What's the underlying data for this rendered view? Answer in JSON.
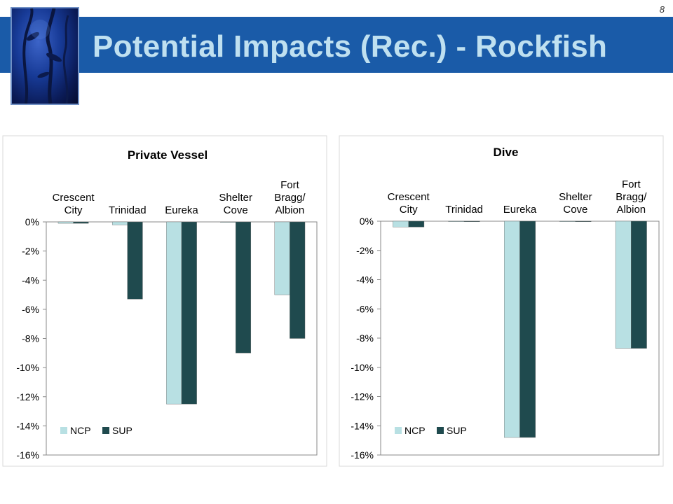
{
  "slide": {
    "title": "Potential Impacts (Rec.) - Rockfish",
    "page_number": "8"
  },
  "colors": {
    "title_band": "#1a5ba8",
    "title_text": "#bfe0f0",
    "ncp": "#b8e0e3",
    "sup": "#1f4a4e"
  },
  "chart_data": [
    {
      "type": "bar",
      "title": "Private Vessel",
      "categories": [
        [
          "Crescent",
          "City"
        ],
        [
          "Trinidad"
        ],
        [
          "Eureka"
        ],
        [
          "Shelter",
          "Cove"
        ],
        [
          "Fort",
          "Bragg/",
          "Albion"
        ]
      ],
      "series": [
        {
          "name": "NCP",
          "values": [
            -0.1,
            -0.2,
            -12.5,
            0,
            -5.0
          ]
        },
        {
          "name": "SUP",
          "values": [
            -0.1,
            -5.3,
            -12.5,
            -9.0,
            -8.0
          ]
        }
      ],
      "ylim": [
        -16,
        0
      ],
      "yticks": [
        "0%",
        "-2%",
        "-4%",
        "-6%",
        "-8%",
        "-10%",
        "-12%",
        "-14%",
        "-16%"
      ],
      "category_axis_position": "top",
      "legend": "bottom-left",
      "grid": false
    },
    {
      "type": "bar",
      "title": "Dive",
      "categories": [
        [
          "Crescent",
          "City"
        ],
        [
          "Trinidad"
        ],
        [
          "Eureka"
        ],
        [
          "Shelter",
          "Cove"
        ],
        [
          "Fort",
          "Bragg/",
          "Albion"
        ]
      ],
      "series": [
        {
          "name": "NCP",
          "values": [
            -0.4,
            0,
            -14.8,
            0,
            -8.7
          ]
        },
        {
          "name": "SUP",
          "values": [
            -0.4,
            0,
            -14.8,
            0,
            -8.7
          ]
        }
      ],
      "ylim": [
        -16,
        0
      ],
      "yticks": [
        "0%",
        "-2%",
        "-4%",
        "-6%",
        "-8%",
        "-10%",
        "-12%",
        "-14%",
        "-16%"
      ],
      "category_axis_position": "top",
      "legend": "bottom-left",
      "grid": false
    }
  ]
}
